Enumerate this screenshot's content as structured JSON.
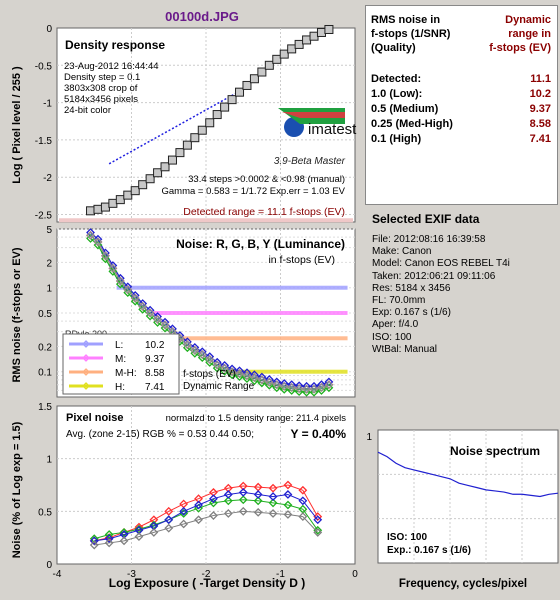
{
  "file_title": "00100d.JPG",
  "density": {
    "title": "Density response",
    "info": [
      "23-Aug-2012 16:44:44",
      "Density step = 0.1",
      "3803x308 crop of",
      "5184x3456 pixels",
      "24-bit color"
    ],
    "logo_text": "imatest",
    "logo_sub": "3.9-Beta  Master",
    "steps_text": "33.4 steps >0.0002 & <0.98 (manual)",
    "gamma_text": "Gamma = 0.583 = 1/1.72  Exp.err = 1.03 EV",
    "detected_text": "Detected range = 11.1 f-stops (EV)",
    "ylabel": "Log ( Pixel level / 255 )",
    "yticks": [
      "0",
      "-0.5",
      "-1",
      "-1.5",
      "-2",
      "-2.5"
    ]
  },
  "noise_rgb": {
    "title": "Noise: R, G, B, Y (Luminance)",
    "subtitle": "in f-stops (EV)",
    "ylabel": "RMS noise (f-stops or EV)",
    "yticks": [
      "5",
      "2",
      "1",
      "0.5",
      "0.2",
      "0.1"
    ],
    "legend_header": "f-stops (EV)",
    "legend_footer": "Dynamic Range",
    "legend": [
      {
        "label": "L:",
        "value": "10.2",
        "color": "#a0a0ff"
      },
      {
        "label": "M:",
        "value": "9.37",
        "color": "#ff80ff"
      },
      {
        "label": "M-H:",
        "value": "8.58",
        "color": "#ffb080"
      },
      {
        "label": "H:",
        "value": "7.41",
        "color": "#e0e020"
      }
    ],
    "partial_label": "RDylo 200"
  },
  "pixel_noise": {
    "title": "Pixel noise",
    "norm_text": "normalzd to 1.5 density range: 211.4 pixels",
    "avg_text": "Avg. (zone 2-15) RGB % = 0.53  0.44  0.50;",
    "y_text": "Y = 0.40%",
    "ylabel": "Noise (% of Log exp = 1.5)",
    "yticks": [
      "0",
      "0.5",
      "1",
      "1.5"
    ],
    "xticks": [
      "-4",
      "-3",
      "-2",
      "-1",
      "0"
    ],
    "xlabel": "Log Exposure ( -Target Density D )"
  },
  "spectrum": {
    "title": "Noise spectrum",
    "ytick": "1",
    "iso_text": "ISO:    100",
    "exp_text": "Exp.:  0.167 s   (1/6)",
    "xlabel": "Frequency, cycles/pixel"
  },
  "dr_table": {
    "header_left": [
      "RMS noise in",
      "f-stops (1/SNR)",
      "(Quality)"
    ],
    "header_right": [
      "Dynamic",
      "range in",
      "f-stops (EV)"
    ],
    "rows": [
      {
        "label": "Detected:",
        "value": "11.1"
      },
      {
        "label": "1.0   (Low):",
        "value": "10.2"
      },
      {
        "label": "0.5   (Medium)",
        "value": "9.37"
      },
      {
        "label": "0.25 (Med-High)",
        "value": "8.58"
      },
      {
        "label": "0.1   (High)",
        "value": "7.41"
      }
    ]
  },
  "exif": {
    "title": "Selected EXIF data",
    "lines": [
      "File:  2012:08:16 16:39:58",
      "Make:  Canon",
      "Model: Canon EOS REBEL T4i",
      "Taken:  2012:06:21 09:11:06",
      "Res:    5184 x 3456",
      "FL:  70.0mm",
      "Exp:   0.167 s   (1/6)",
      "Aper:  f/4.0",
      "ISO:   100",
      "WtBal: Manual"
    ]
  },
  "chart_data": [
    {
      "type": "scatter",
      "title": "Density response",
      "ylabel": "Log ( Pixel level / 255 )",
      "ylim": [
        -2.6,
        0
      ],
      "xlim": [
        -4,
        0
      ],
      "series": [
        {
          "x": [
            -3.55,
            -3.45,
            -3.35,
            -3.25,
            -3.15,
            -3.05,
            -2.95,
            -2.85,
            -2.75,
            -2.65,
            -2.55,
            -2.45,
            -2.35,
            -2.25,
            -2.15,
            -2.05,
            -1.95,
            -1.85,
            -1.75,
            -1.65,
            -1.55,
            -1.45,
            -1.35,
            -1.25,
            -1.15,
            -1.05,
            -0.95,
            -0.85,
            -0.75,
            -0.65,
            -0.55,
            -0.45,
            -0.35
          ],
          "values": [
            -2.45,
            -2.43,
            -2.4,
            -2.35,
            -2.3,
            -2.24,
            -2.18,
            -2.1,
            -2.02,
            -1.94,
            -1.86,
            -1.77,
            -1.67,
            -1.57,
            -1.47,
            -1.37,
            -1.27,
            -1.16,
            -1.06,
            -0.96,
            -0.86,
            -0.77,
            -0.68,
            -0.59,
            -0.5,
            -0.42,
            -0.35,
            -0.28,
            -0.22,
            -0.16,
            -0.11,
            -0.06,
            -0.02
          ]
        }
      ],
      "fit_line": {
        "x": [
          -3.3,
          -1.5
        ],
        "y": [
          -1.82,
          -0.82
        ]
      }
    },
    {
      "type": "line",
      "title": "Noise: R, G, B, Y (Luminance)",
      "ylabel": "RMS noise (f-stops or EV)",
      "yscale": "log",
      "ylim": [
        0.05,
        5
      ],
      "xlim": [
        -4,
        0
      ],
      "thresholds": [
        1,
        0.5,
        0.25,
        0.1
      ],
      "series": [
        {
          "name": "Y",
          "x": [
            -3.55,
            -3.45,
            -3.35,
            -3.25,
            -3.15,
            -3.05,
            -2.95,
            -2.85,
            -2.75,
            -2.65,
            -2.55,
            -2.45,
            -2.35,
            -2.25,
            -2.15,
            -2.05,
            -1.95,
            -1.85,
            -1.75,
            -1.65,
            -1.55,
            -1.45,
            -1.35,
            -1.25,
            -1.15,
            -1.05,
            -0.95,
            -0.85,
            -0.75,
            -0.65,
            -0.55,
            -0.45,
            -0.35
          ],
          "values": [
            4.2,
            3.5,
            2.4,
            1.7,
            1.2,
            0.95,
            0.75,
            0.6,
            0.5,
            0.42,
            0.36,
            0.3,
            0.25,
            0.21,
            0.18,
            0.16,
            0.14,
            0.12,
            0.11,
            0.1,
            0.095,
            0.09,
            0.085,
            0.08,
            0.075,
            0.07,
            0.067,
            0.065,
            0.063,
            0.062,
            0.062,
            0.065,
            0.07
          ]
        }
      ]
    },
    {
      "type": "scatter",
      "title": "Pixel noise",
      "ylabel": "Noise (% of Log exp = 1.5)",
      "xlabel": "Log Exposure ( -Target Density D )",
      "xlim": [
        -4,
        0
      ],
      "ylim": [
        0,
        1.5
      ],
      "series": [
        {
          "name": "R",
          "color": "#ff3030",
          "x": [
            -3.5,
            -3.3,
            -3.1,
            -2.9,
            -2.7,
            -2.5,
            -2.3,
            -2.1,
            -1.9,
            -1.7,
            -1.5,
            -1.3,
            -1.1,
            -0.9,
            -0.7,
            -0.5
          ],
          "values": [
            0.22,
            0.25,
            0.3,
            0.35,
            0.42,
            0.5,
            0.57,
            0.62,
            0.68,
            0.72,
            0.74,
            0.73,
            0.72,
            0.75,
            0.7,
            0.45
          ]
        },
        {
          "name": "G",
          "color": "#20b020",
          "x": [
            -3.5,
            -3.3,
            -3.1,
            -2.9,
            -2.7,
            -2.5,
            -2.3,
            -2.1,
            -1.9,
            -1.7,
            -1.5,
            -1.3,
            -1.1,
            -0.9,
            -0.7,
            -0.5
          ],
          "values": [
            0.24,
            0.28,
            0.3,
            0.33,
            0.37,
            0.42,
            0.48,
            0.53,
            0.58,
            0.6,
            0.61,
            0.6,
            0.58,
            0.56,
            0.52,
            0.32
          ]
        },
        {
          "name": "B",
          "color": "#2020d0",
          "x": [
            -3.5,
            -3.3,
            -3.1,
            -2.9,
            -2.7,
            -2.5,
            -2.3,
            -2.1,
            -1.9,
            -1.7,
            -1.5,
            -1.3,
            -1.1,
            -0.9,
            -0.7,
            -0.5
          ],
          "values": [
            0.22,
            0.24,
            0.28,
            0.32,
            0.36,
            0.42,
            0.5,
            0.56,
            0.62,
            0.66,
            0.68,
            0.66,
            0.64,
            0.66,
            0.6,
            0.42
          ]
        },
        {
          "name": "Y",
          "color": "#808080",
          "x": [
            -3.5,
            -3.3,
            -3.1,
            -2.9,
            -2.7,
            -2.5,
            -2.3,
            -2.1,
            -1.9,
            -1.7,
            -1.5,
            -1.3,
            -1.1,
            -0.9,
            -0.7,
            -0.5
          ],
          "values": [
            0.18,
            0.2,
            0.22,
            0.26,
            0.3,
            0.34,
            0.38,
            0.42,
            0.46,
            0.48,
            0.5,
            0.49,
            0.48,
            0.47,
            0.45,
            0.3
          ]
        }
      ]
    },
    {
      "type": "line",
      "title": "Noise spectrum",
      "xlabel": "Frequency, cycles/pixel",
      "xlim": [
        0,
        0.5
      ],
      "ylim": [
        0,
        1.2
      ],
      "series": [
        {
          "x": [
            0,
            0.025,
            0.05,
            0.075,
            0.1,
            0.125,
            0.15,
            0.175,
            0.2,
            0.225,
            0.25,
            0.275,
            0.3,
            0.325,
            0.35,
            0.375,
            0.4,
            0.425,
            0.45,
            0.475,
            0.5
          ],
          "values": [
            1.0,
            0.96,
            0.9,
            0.86,
            0.84,
            0.82,
            0.8,
            0.78,
            0.76,
            0.72,
            0.7,
            0.68,
            0.66,
            0.65,
            0.64,
            0.62,
            0.62,
            0.61,
            0.6,
            0.62,
            0.63
          ]
        }
      ]
    }
  ]
}
